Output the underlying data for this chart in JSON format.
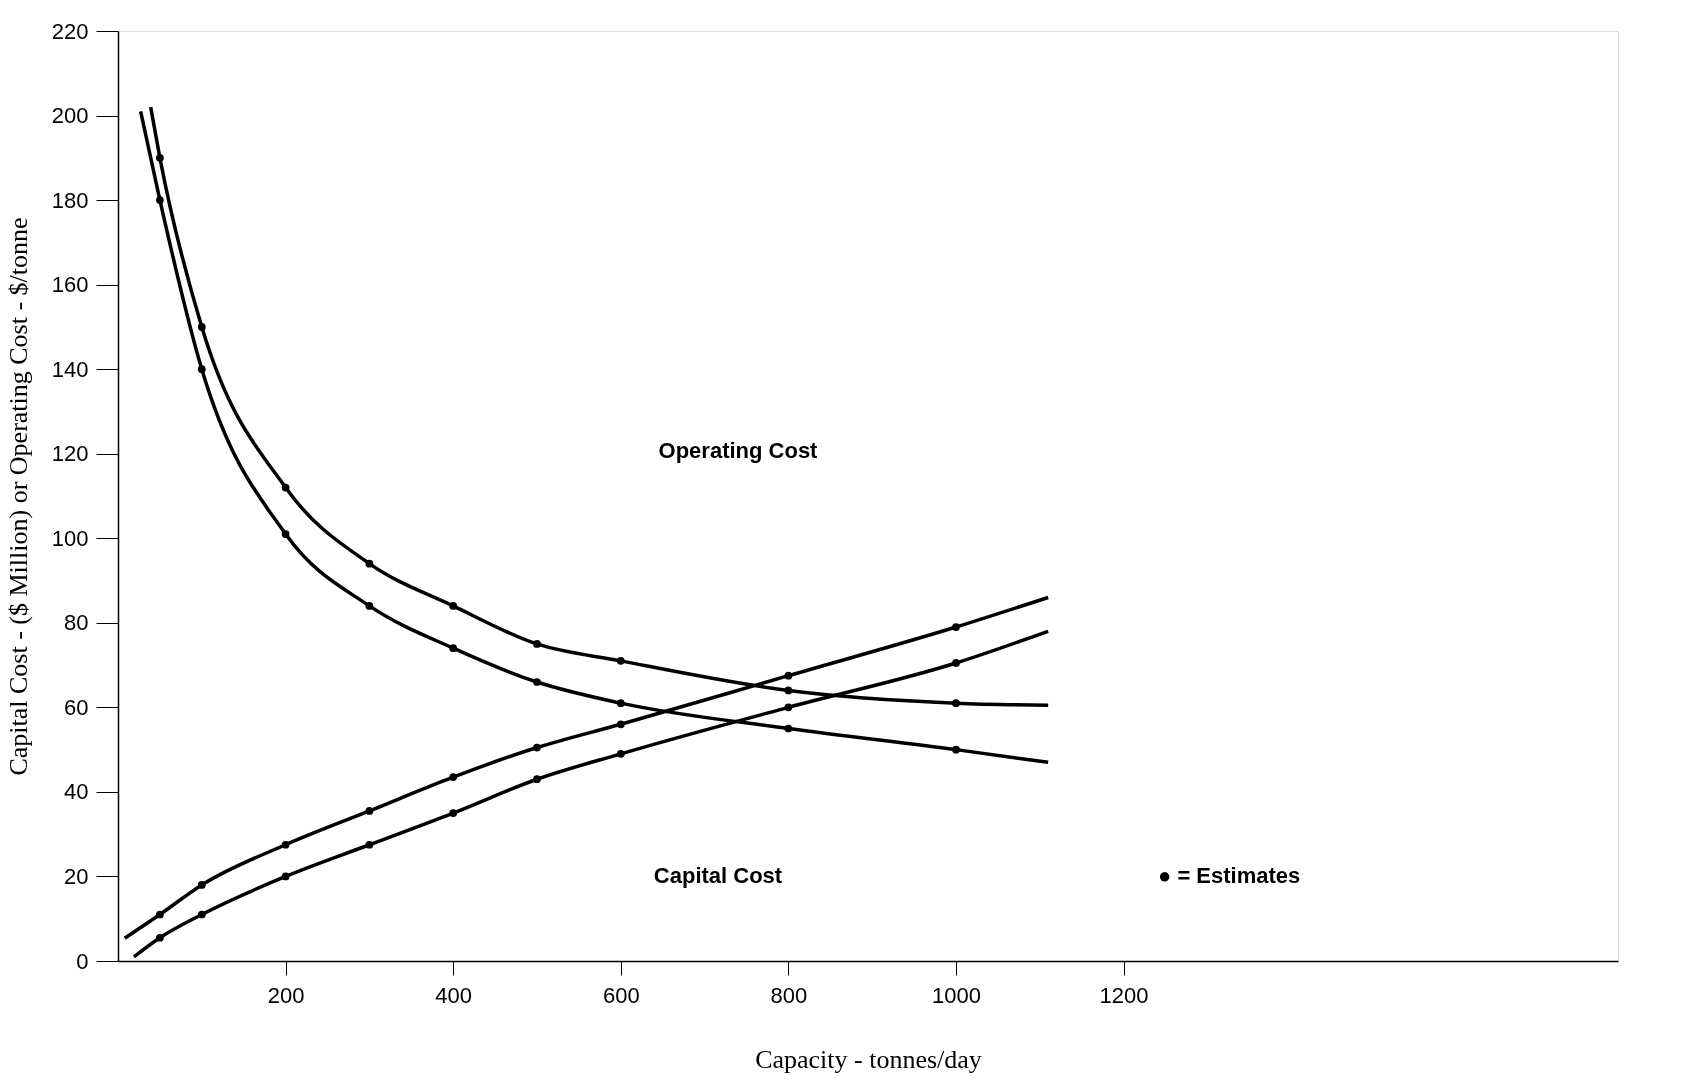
{
  "chart_data": {
    "type": "line",
    "xlabel": "Capacity - tonnes/day",
    "ylabel": "Capital Cost - ($ Million) or Operating Cost - $/tonne",
    "xlim": [
      0,
      1790
    ],
    "ylim": [
      0,
      220
    ],
    "xticks": [
      200,
      400,
      600,
      800,
      1000,
      1200
    ],
    "yticks": [
      0,
      20,
      40,
      60,
      80,
      100,
      120,
      140,
      160,
      180,
      200,
      220
    ],
    "grid": false,
    "line_style": "solid",
    "series": [
      {
        "color": "#000000",
        "x": [
          39,
          50,
          100,
          200,
          300,
          400,
          500,
          600,
          800,
          1000,
          1110
        ],
        "values": [
          202,
          190,
          150,
          112,
          94,
          84,
          75,
          71,
          64,
          61,
          60.5
        ]
      },
      {
        "color": "#000000",
        "x": [
          27,
          50,
          100,
          200,
          300,
          400,
          500,
          600,
          800,
          1000,
          1110
        ],
        "values": [
          201,
          180,
          140,
          101,
          84,
          74,
          66,
          61,
          55,
          50,
          47
        ]
      },
      {
        "color": "#000000",
        "x": [
          8,
          50,
          100,
          200,
          300,
          400,
          500,
          600,
          800,
          1000,
          1110
        ],
        "values": [
          5.4,
          11,
          18,
          27.5,
          35.5,
          43.5,
          50.5,
          56,
          67.5,
          79,
          86
        ]
      },
      {
        "color": "#000000",
        "x": [
          19,
          50,
          100,
          200,
          300,
          400,
          500,
          600,
          800,
          1000,
          1110
        ],
        "values": [
          1,
          5.5,
          11,
          20,
          27.5,
          35,
          43,
          49,
          60,
          70.5,
          78
        ]
      },
      {
        "type": "scatter",
        "marker": "circle",
        "color": "#000000",
        "x": [
          50,
          100,
          200,
          300,
          400,
          500,
          600,
          800,
          1000
        ],
        "values": [
          190,
          150,
          112,
          94,
          84,
          75,
          71,
          64,
          61
        ]
      },
      {
        "type": "scatter",
        "marker": "circle",
        "color": "#000000",
        "x": [
          50,
          100,
          200,
          300,
          400,
          500,
          600,
          800,
          1000
        ],
        "values": [
          180,
          140,
          101,
          84,
          74,
          66,
          61,
          55,
          50
        ]
      },
      {
        "type": "scatter",
        "marker": "circle",
        "color": "#000000",
        "x": [
          50,
          100,
          200,
          300,
          400,
          500,
          600,
          800,
          1000
        ],
        "values": [
          11,
          18,
          27.5,
          35.5,
          43.5,
          50.5,
          56,
          67.5,
          79
        ]
      },
      {
        "type": "scatter",
        "marker": "circle",
        "color": "#000000",
        "x": [
          50,
          100,
          200,
          300,
          400,
          500,
          600,
          800,
          1000
        ],
        "values": [
          5.5,
          11,
          20,
          27.5,
          35,
          43,
          49,
          60,
          70.5
        ]
      }
    ],
    "annotations": [
      "Operating  Cost",
      "Capital  Cost",
      "●  =  Estimates"
    ]
  }
}
